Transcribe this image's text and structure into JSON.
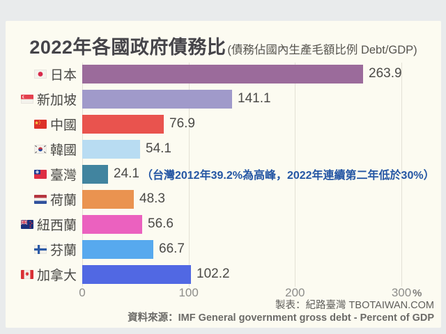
{
  "title": {
    "main": "2022年各國政府債務比",
    "sub": "(債務佔國內生產毛額比例 Debt/GDP)"
  },
  "chart_data": {
    "type": "bar",
    "orientation": "horizontal",
    "title": "2022年各國政府債務比 (債務佔國內生產毛額比例 Debt/GDP)",
    "unit": "%",
    "xlim": [
      0,
      300
    ],
    "x_ticks": [
      0,
      100,
      200,
      300
    ],
    "x_tick_suffix": "%",
    "grid": "vertical",
    "annotation_color": "#2456a4",
    "rows": [
      {
        "country": "日本",
        "flag": "flag-japan",
        "value": 263.9,
        "color": "#9b6b9b"
      },
      {
        "country": "新加坡",
        "flag": "flag-singapore",
        "value": 141.1,
        "color": "#a09aca"
      },
      {
        "country": "中國",
        "flag": "flag-china",
        "value": 76.9,
        "color": "#e9534e"
      },
      {
        "country": "韓國",
        "flag": "flag-south-korea",
        "value": 54.1,
        "color": "#b8dcf2"
      },
      {
        "country": "臺灣",
        "flag": "flag-taiwan",
        "value": 24.1,
        "color": "#41849f",
        "annotation": "（台灣2012年39.2%為高峰，2022年連續第二年低於30%）"
      },
      {
        "country": "荷蘭",
        "flag": "flag-netherlands",
        "value": 48.3,
        "color": "#ea9350"
      },
      {
        "country": "紐西蘭",
        "flag": "flag-new-zealand",
        "value": 56.6,
        "color": "#eb61bf"
      },
      {
        "country": "芬蘭",
        "flag": "flag-finland",
        "value": 66.7,
        "color": "#57a9ee"
      },
      {
        "country": "加拿大",
        "flag": "flag-canada",
        "value": 102.2,
        "color": "#5168e3"
      }
    ]
  },
  "footer": {
    "credit": "製表：紀路臺灣 TBOTAIWAN.COM",
    "source": "資料來源：IMF General government gross debt - Percent of GDP"
  }
}
